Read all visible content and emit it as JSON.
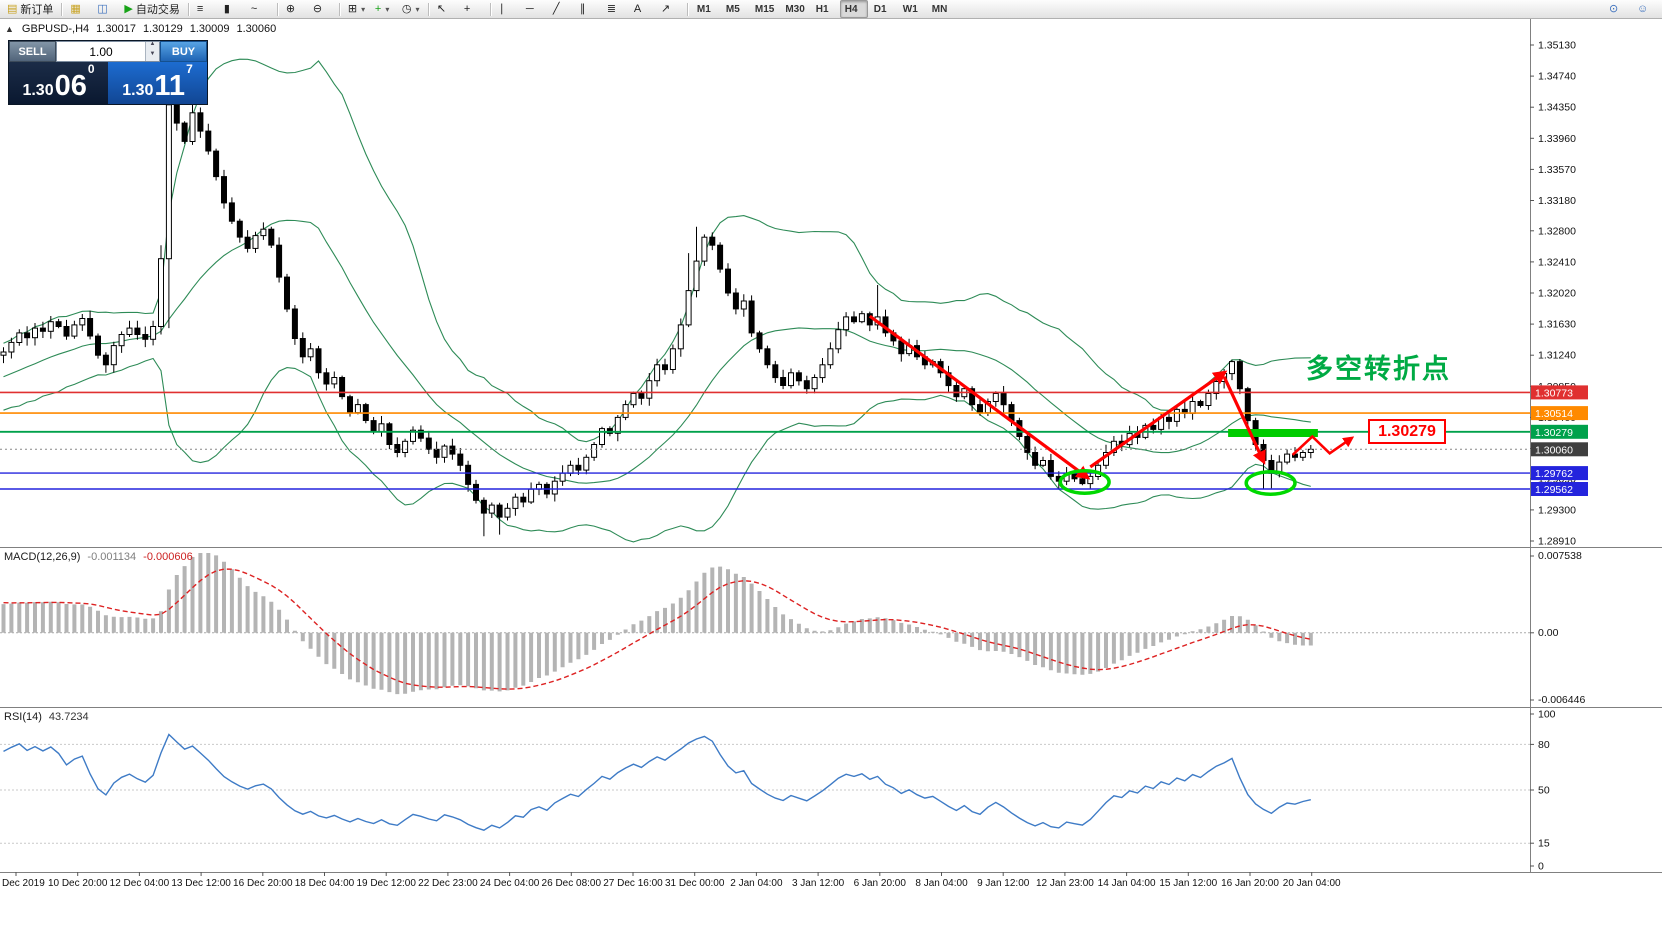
{
  "toolbar": {
    "groups": [
      {
        "items": [
          {
            "name": "new-order-button",
            "glyph": "▤",
            "glyph_color": "#c8a220",
            "label": "新订单"
          }
        ]
      },
      {
        "items": [
          {
            "name": "charts-window-button",
            "glyph": "▦",
            "glyph_color": "#c8a220"
          },
          {
            "name": "market-watch-button",
            "glyph": "◫",
            "glyph_color": "#3a6fbd"
          },
          {
            "name": "auto-trading-button",
            "glyph": "▶",
            "glyph_color": "#18a318",
            "label": "自动交易"
          }
        ]
      },
      {
        "items": [
          {
            "name": "bar-chart-button",
            "glyph": "≡"
          },
          {
            "name": "candlestick-chart-button",
            "glyph": "▮"
          },
          {
            "name": "line-chart-button",
            "glyph": "~"
          }
        ]
      },
      {
        "items": [
          {
            "name": "zoom-in-button",
            "glyph": "⊕"
          },
          {
            "name": "zoom-out-button",
            "glyph": "⊖"
          }
        ]
      },
      {
        "items": [
          {
            "name": "new-chart-button",
            "glyph": "⊞",
            "caret": true
          },
          {
            "name": "indicators-button",
            "glyph": "+",
            "glyph_color": "#18a318",
            "caret": true
          },
          {
            "name": "period-selector-button",
            "glyph": "◷",
            "caret": true
          }
        ]
      },
      {
        "items": [
          {
            "name": "cursor-button",
            "glyph": "↖"
          },
          {
            "name": "crosshair-button",
            "glyph": "+"
          }
        ]
      },
      {
        "items": [
          {
            "name": "vertical-line-button",
            "glyph": "∣"
          },
          {
            "name": "horizontal-line-button",
            "glyph": "─"
          },
          {
            "name": "trendline-button",
            "glyph": "╱"
          },
          {
            "name": "equidistant-channel-button",
            "glyph": "∥"
          },
          {
            "name": "fibonacci-button",
            "glyph": "≣"
          },
          {
            "name": "text-button",
            "glyph": "A"
          },
          {
            "name": "arrows-tool-button",
            "glyph": "↗"
          }
        ]
      },
      {
        "items": [
          {
            "name": "timeframe-m1",
            "label": "M1",
            "tf": true
          },
          {
            "name": "timeframe-m5",
            "label": "M5",
            "tf": true
          },
          {
            "name": "timeframe-m15",
            "label": "M15",
            "tf": true
          },
          {
            "name": "timeframe-m30",
            "label": "M30",
            "tf": true
          },
          {
            "name": "timeframe-h1",
            "label": "H1",
            "tf": true
          },
          {
            "name": "timeframe-h4",
            "label": "H4",
            "tf": true,
            "active": true
          },
          {
            "name": "timeframe-d1",
            "label": "D1",
            "tf": true
          },
          {
            "name": "timeframe-w1",
            "label": "W1",
            "tf": true
          },
          {
            "name": "timeframe-mn",
            "label": "MN",
            "tf": true
          }
        ]
      }
    ],
    "right_items": [
      {
        "name": "search-icon",
        "glyph": "⊙",
        "glyph_color": "#3a6fbd"
      },
      {
        "name": "community-icon",
        "glyph": "☺",
        "glyph_color": "#3a6fbd"
      }
    ]
  },
  "ohlc_header": {
    "collapse_glyph": "▲",
    "symbol": "GBPUSD-,H4",
    "open": "1.30017",
    "high": "1.30129",
    "low": "1.30009",
    "close": "1.30060"
  },
  "quote_panel": {
    "sell_label": "SELL",
    "buy_label": "BUY",
    "volume": "1.00",
    "sell_price": {
      "prefix": "1.30",
      "big": "06",
      "sup": "0"
    },
    "buy_price": {
      "prefix": "1.30",
      "big": "11",
      "sup": "7"
    }
  },
  "panels": {
    "macd": {
      "name": "MACD(12,26,9)",
      "value_main": "-0.001134",
      "value_signal": "-0.000606",
      "scale_labels": [
        "0.007538",
        "0.00",
        "-0.006446"
      ],
      "scale_max": 0.007538,
      "scale_min": -0.006446,
      "histogram_color": "#b4b4b4",
      "signal_color": "#dd2222"
    },
    "rsi": {
      "name": "RSI(14)",
      "value": "43.7234",
      "line_color": "#3e7bc6",
      "levels": [
        {
          "label": "100",
          "v": 100,
          "line": false
        },
        {
          "label": "80",
          "v": 80,
          "line": true
        },
        {
          "label": "50",
          "v": 50,
          "line": true
        },
        {
          "label": "15",
          "v": 15,
          "line": true
        },
        {
          "label": "0",
          "v": 0,
          "line": false
        }
      ]
    }
  },
  "chart_data": {
    "type": "candlestick",
    "symbol": "GBPUSD-",
    "timeframe": "H4",
    "prehistory_closes": [
      1.2925,
      1.2932,
      1.294,
      1.2936,
      1.2948,
      1.2955,
      1.295,
      1.2962,
      1.297,
      1.2966,
      1.2978,
      1.2985,
      1.2992,
      1.2988,
      1.3,
      1.3008,
      1.3004,
      1.3016,
      1.3022,
      1.303,
      1.3026,
      1.3038,
      1.3032,
      1.3044,
      1.3052,
      1.3048,
      1.306,
      1.3068,
      1.3064,
      1.3076,
      1.307,
      1.3082,
      1.309,
      1.3086,
      1.3098,
      1.3094,
      1.3106,
      1.3102,
      1.3114,
      1.311,
      1.3118,
      1.3112,
      1.3122,
      1.3116,
      1.3124
    ],
    "closes": [
      1.3128,
      1.314,
      1.3152,
      1.3146,
      1.3158,
      1.3154,
      1.3166,
      1.316,
      1.3148,
      1.3162,
      1.317,
      1.3148,
      1.3124,
      1.3112,
      1.3136,
      1.315,
      1.3158,
      1.315,
      1.3144,
      1.316,
      1.3245,
      1.3438,
      1.3415,
      1.3392,
      1.3428,
      1.3405,
      1.338,
      1.3348,
      1.3315,
      1.3292,
      1.3272,
      1.3258,
      1.3274,
      1.3282,
      1.3262,
      1.3222,
      1.3182,
      1.3145,
      1.3122,
      1.3132,
      1.3102,
      1.3088,
      1.3096,
      1.3072,
      1.3052,
      1.3062,
      1.3042,
      1.3028,
      1.3038,
      1.3012,
      1.3002,
      1.3016,
      1.303,
      1.302,
      1.3006,
      1.2996,
      1.301,
      1.3,
      1.2986,
      1.2962,
      1.2942,
      1.2926,
      1.2936,
      1.2921,
      1.2932,
      1.2946,
      1.294,
      1.2956,
      1.2962,
      1.295,
      1.2966,
      1.2976,
      1.2986,
      1.298,
      1.2996,
      1.3012,
      1.3032,
      1.3026,
      1.3046,
      1.3062,
      1.3076,
      1.307,
      1.3092,
      1.3112,
      1.3106,
      1.3132,
      1.3162,
      1.3205,
      1.3242,
      1.3272,
      1.3262,
      1.3232,
      1.3202,
      1.3182,
      1.3192,
      1.3152,
      1.3132,
      1.3112,
      1.3096,
      1.3086,
      1.3102,
      1.3092,
      1.3082,
      1.3096,
      1.3112,
      1.3132,
      1.3156,
      1.3172,
      1.3166,
      1.3176,
      1.3162,
      1.3172,
      1.3152,
      1.3142,
      1.3126,
      1.3136,
      1.3122,
      1.3112,
      1.3116,
      1.3102,
      1.3086,
      1.3072,
      1.3082,
      1.3062,
      1.3052,
      1.3066,
      1.3076,
      1.3062,
      1.3042,
      1.3022,
      1.3002,
      1.2986,
      1.2992,
      1.2972,
      1.2966,
      1.2976,
      1.2969,
      1.2963,
      1.2972,
      1.2986,
      1.3002,
      1.3016,
      1.3012,
      1.3026,
      1.3021,
      1.3036,
      1.3031,
      1.3046,
      1.3041,
      1.3056,
      1.3051,
      1.3066,
      1.3061,
      1.3076,
      1.3091,
      1.3101,
      1.3116,
      1.3082,
      1.3042,
      1.3012,
      1.2992,
      1.2976,
      1.299,
      1.3,
      1.2996,
      1.3002,
      1.3006
    ],
    "wick_overrides": {
      "20": {
        "high": 1.3262,
        "low": 1.315
      },
      "21": {
        "high": 1.345,
        "low": 1.3158
      },
      "22": {
        "high": 1.3448
      },
      "24": {
        "high": 1.3452
      },
      "61": {
        "low": 1.2897
      },
      "63": {
        "low": 1.2899
      },
      "87": {
        "high": 1.3252
      },
      "88": {
        "high": 1.3285
      },
      "111": {
        "high": 1.3212
      },
      "160": {
        "low": 1.2956
      },
      "161": {
        "low": 1.2957
      }
    },
    "bollinger": {
      "period": 20,
      "deviation": 2,
      "color": "#2e8b57"
    },
    "horizontal_lines": [
      {
        "price": 1.30773,
        "label": "1.30773",
        "color": "#e03030",
        "width": 1.6
      },
      {
        "price": 1.30514,
        "label": "1.30514",
        "color": "#ff8a00",
        "width": 1.6
      },
      {
        "price": 1.30279,
        "label": "1.30279",
        "color": "#00a14b",
        "width": 1.8
      },
      {
        "price": 1.29762,
        "label": "1.29762",
        "color": "#2424dd",
        "width": 1.4
      },
      {
        "price": 1.29562,
        "label": "1.29562",
        "color": "#2424dd",
        "width": 1.4
      }
    ],
    "current_price": {
      "label": "1.30060",
      "price": 1.3006,
      "tag_color": "#3f3f3f"
    },
    "price_axis_ticks": [
      "1.35130",
      "1.34740",
      "1.34350",
      "1.33960",
      "1.33570",
      "1.33180",
      "1.32800",
      "1.32410",
      "1.32020",
      "1.31630",
      "1.31240",
      "1.30850",
      "1.30460",
      "1.30070",
      "1.29690",
      "1.29300",
      "1.28910"
    ],
    "time_axis_labels": [
      "Dec 2019",
      "10 Dec 20:00",
      "12 Dec 04:00",
      "13 Dec 12:00",
      "16 Dec 20:00",
      "18 Dec 04:00",
      "19 Dec 12:00",
      "22 Dec 23:00",
      "24 Dec 04:00",
      "26 Dec 08:00",
      "27 Dec 16:00",
      "31 Dec 00:00",
      "2 Jan 04:00",
      "3 Jan 12:00",
      "6 Jan 20:00",
      "8 Jan 04:00",
      "9 Jan 12:00",
      "12 Jan 23:00",
      "14 Jan 04:00",
      "15 Jan 12:00",
      "16 Jan 20:00",
      "20 Jan 04:00"
    ],
    "annotations": {
      "arrow_color": "#ff0000",
      "ellipse_color": "#00d800",
      "trend_arrows": [
        {
          "from": [
            110,
            1.3173
          ],
          "to": [
            137.6,
            1.2971
          ]
        },
        {
          "from": [
            138,
            1.2984
          ],
          "to": [
            155,
            1.3102
          ]
        },
        {
          "from": [
            155,
            1.3097
          ],
          "to": [
            160,
            1.2991
          ]
        }
      ],
      "zigzag_arrow": [
        [
          163.7,
          1.2999
        ],
        [
          166.2,
          1.3022
        ],
        [
          168.4,
          1.3001
        ],
        [
          171.2,
          1.302
        ]
      ],
      "ellipses": [
        {
          "center": [
            137.3,
            1.2965
          ],
          "rx_bars": 3.1,
          "ry_price": 0.0014
        },
        {
          "center": [
            160.9,
            1.29637
          ],
          "rx_bars": 3.1,
          "ry_price": 0.0014
        }
      ],
      "highlight_bar": {
        "from_bar": 155.5,
        "to_bar": 166.9,
        "top_price": 1.30315,
        "bottom_price": 1.30215,
        "color": "#00cc00"
      },
      "callout": {
        "text": "1.30279",
        "color": "#ff0000"
      },
      "note": {
        "text": "多空转折点",
        "color": "#00aa44"
      }
    }
  }
}
